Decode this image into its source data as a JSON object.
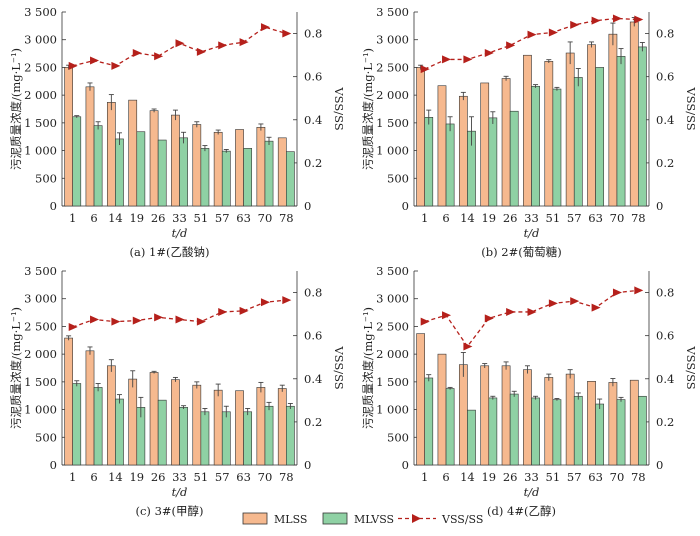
{
  "chart_data": [
    {
      "type": "bar",
      "caption": "(a) 1#(乙酸钠)",
      "xlabel": "t/d",
      "ylabel": "污泥质量浓度/(mg·L⁻¹)",
      "y2label": "VSS/SS",
      "categories": [
        "1",
        "6",
        "14",
        "19",
        "26",
        "33",
        "51",
        "57",
        "63",
        "70",
        "78"
      ],
      "ylim": [
        0,
        3500
      ],
      "y2lim": [
        0,
        0.9
      ],
      "yticks": [
        "0",
        "500",
        "1 000",
        "1 500",
        "2 000",
        "2 500",
        "3 000",
        "3 500"
      ],
      "y2ticks": [
        "0",
        "0.2",
        "0.4",
        "0.6",
        "0.8"
      ],
      "series": [
        {
          "name": "MLSS",
          "values": [
            2500,
            2150,
            1870,
            1910,
            1720,
            1640,
            1470,
            1330,
            1380,
            1420,
            1230
          ],
          "errors": [
            40,
            70,
            140,
            0,
            30,
            90,
            50,
            40,
            0,
            60,
            0
          ]
        },
        {
          "name": "MLVSS",
          "values": [
            1610,
            1450,
            1210,
            1340,
            1190,
            1230,
            1040,
            990,
            1040,
            1170,
            980
          ],
          "errors": [
            20,
            70,
            110,
            0,
            0,
            100,
            50,
            30,
            0,
            70,
            0
          ]
        },
        {
          "name": "VSS/SS",
          "values": [
            0.65,
            0.675,
            0.65,
            0.71,
            0.695,
            0.755,
            0.715,
            0.745,
            0.76,
            0.83,
            0.8
          ]
        }
      ]
    },
    {
      "type": "bar",
      "caption": "(b) 2#(葡萄糖)",
      "xlabel": "t/d",
      "ylabel": "污泥质量浓度/(mg·L⁻¹)",
      "y2label": "VSS/SS",
      "categories": [
        "1",
        "6",
        "14",
        "19",
        "26",
        "33",
        "51",
        "57",
        "63",
        "70",
        "78"
      ],
      "ylim": [
        0,
        3500
      ],
      "y2lim": [
        0,
        0.9
      ],
      "yticks": [
        "0",
        "500",
        "1 000",
        "1 500",
        "2 000",
        "2 500",
        "3 000",
        "3 500"
      ],
      "y2ticks": [
        "0",
        "0.2",
        "0.4",
        "0.6",
        "0.8"
      ],
      "series": [
        {
          "name": "MLSS",
          "values": [
            2500,
            2170,
            1980,
            2220,
            2300,
            2720,
            2610,
            2760,
            2910,
            3100,
            3320
          ],
          "errors": [
            40,
            0,
            70,
            0,
            40,
            0,
            30,
            200,
            50,
            200,
            80
          ]
        },
        {
          "name": "MLVSS",
          "values": [
            1600,
            1480,
            1350,
            1590,
            1710,
            2160,
            2110,
            2320,
            2500,
            2700,
            2870
          ],
          "errors": [
            130,
            130,
            260,
            110,
            0,
            30,
            30,
            160,
            0,
            140,
            80
          ]
        },
        {
          "name": "VSS/SS",
          "values": [
            0.635,
            0.68,
            0.68,
            0.71,
            0.745,
            0.795,
            0.805,
            0.84,
            0.86,
            0.87,
            0.865
          ]
        }
      ]
    },
    {
      "type": "bar",
      "caption": "(c) 3#(甲醇)",
      "xlabel": "t/d",
      "ylabel": "污泥质量浓度/(mg·L⁻¹)",
      "y2label": "VSS/SS",
      "categories": [
        "1",
        "6",
        "14",
        "19",
        "26",
        "33",
        "51",
        "57",
        "63",
        "70",
        "78"
      ],
      "ylim": [
        0,
        3500
      ],
      "y2lim": [
        0,
        0.9
      ],
      "yticks": [
        "0",
        "500",
        "1 000",
        "1 500",
        "2 000",
        "2 500",
        "3 000",
        "3 500"
      ],
      "y2ticks": [
        "0",
        "0.2",
        "0.4",
        "0.6",
        "0.8"
      ],
      "series": [
        {
          "name": "MLSS",
          "values": [
            2290,
            2060,
            1790,
            1550,
            1670,
            1540,
            1440,
            1350,
            1340,
            1400,
            1380
          ],
          "errors": [
            40,
            70,
            110,
            150,
            20,
            40,
            60,
            110,
            0,
            90,
            60
          ]
        },
        {
          "name": "MLVSS",
          "values": [
            1470,
            1400,
            1190,
            1040,
            1170,
            1040,
            960,
            960,
            960,
            1060,
            1060
          ],
          "errors": [
            50,
            70,
            80,
            180,
            0,
            30,
            60,
            100,
            60,
            70,
            50
          ]
        },
        {
          "name": "VSS/SS",
          "values": [
            0.64,
            0.675,
            0.665,
            0.67,
            0.685,
            0.675,
            0.665,
            0.71,
            0.715,
            0.755,
            0.765
          ]
        }
      ]
    },
    {
      "type": "bar",
      "caption": "(d) 4#(乙醇)",
      "xlabel": "t/d",
      "ylabel": "污泥质量浓度/(mg·L⁻¹)",
      "y2label": "VSS/SS",
      "categories": [
        "1",
        "6",
        "14",
        "19",
        "26",
        "33",
        "51",
        "57",
        "63",
        "70",
        "78"
      ],
      "ylim": [
        0,
        3500
      ],
      "y2lim": [
        0,
        0.9
      ],
      "yticks": [
        "0",
        "500",
        "1 000",
        "1 500",
        "2 000",
        "2 500",
        "3 000",
        "3 500"
      ],
      "y2ticks": [
        "0",
        "0.2",
        "0.4",
        "0.6",
        "0.8"
      ],
      "series": [
        {
          "name": "MLSS",
          "values": [
            2370,
            2000,
            1810,
            1790,
            1790,
            1720,
            1580,
            1640,
            1510,
            1490,
            1530
          ],
          "errors": [
            0,
            0,
            220,
            40,
            70,
            70,
            60,
            80,
            0,
            70,
            0
          ]
        },
        {
          "name": "MLVSS",
          "values": [
            1570,
            1380,
            990,
            1210,
            1280,
            1210,
            1180,
            1240,
            1100,
            1180,
            1240
          ],
          "errors": [
            60,
            20,
            0,
            30,
            50,
            30,
            20,
            60,
            90,
            40,
            0
          ]
        },
        {
          "name": "VSS/SS",
          "values": [
            0.665,
            0.695,
            0.55,
            0.68,
            0.71,
            0.71,
            0.75,
            0.76,
            0.73,
            0.8,
            0.81
          ]
        }
      ]
    }
  ],
  "legend": {
    "mlss": "MLSS",
    "mlvss": "MLVSS",
    "ratio": "VSS/SS"
  },
  "colors": {
    "mlss": "#f6b98f",
    "mlvss": "#8fd1a4",
    "ratio": "#b5201b",
    "bar_edge": "#333333"
  }
}
